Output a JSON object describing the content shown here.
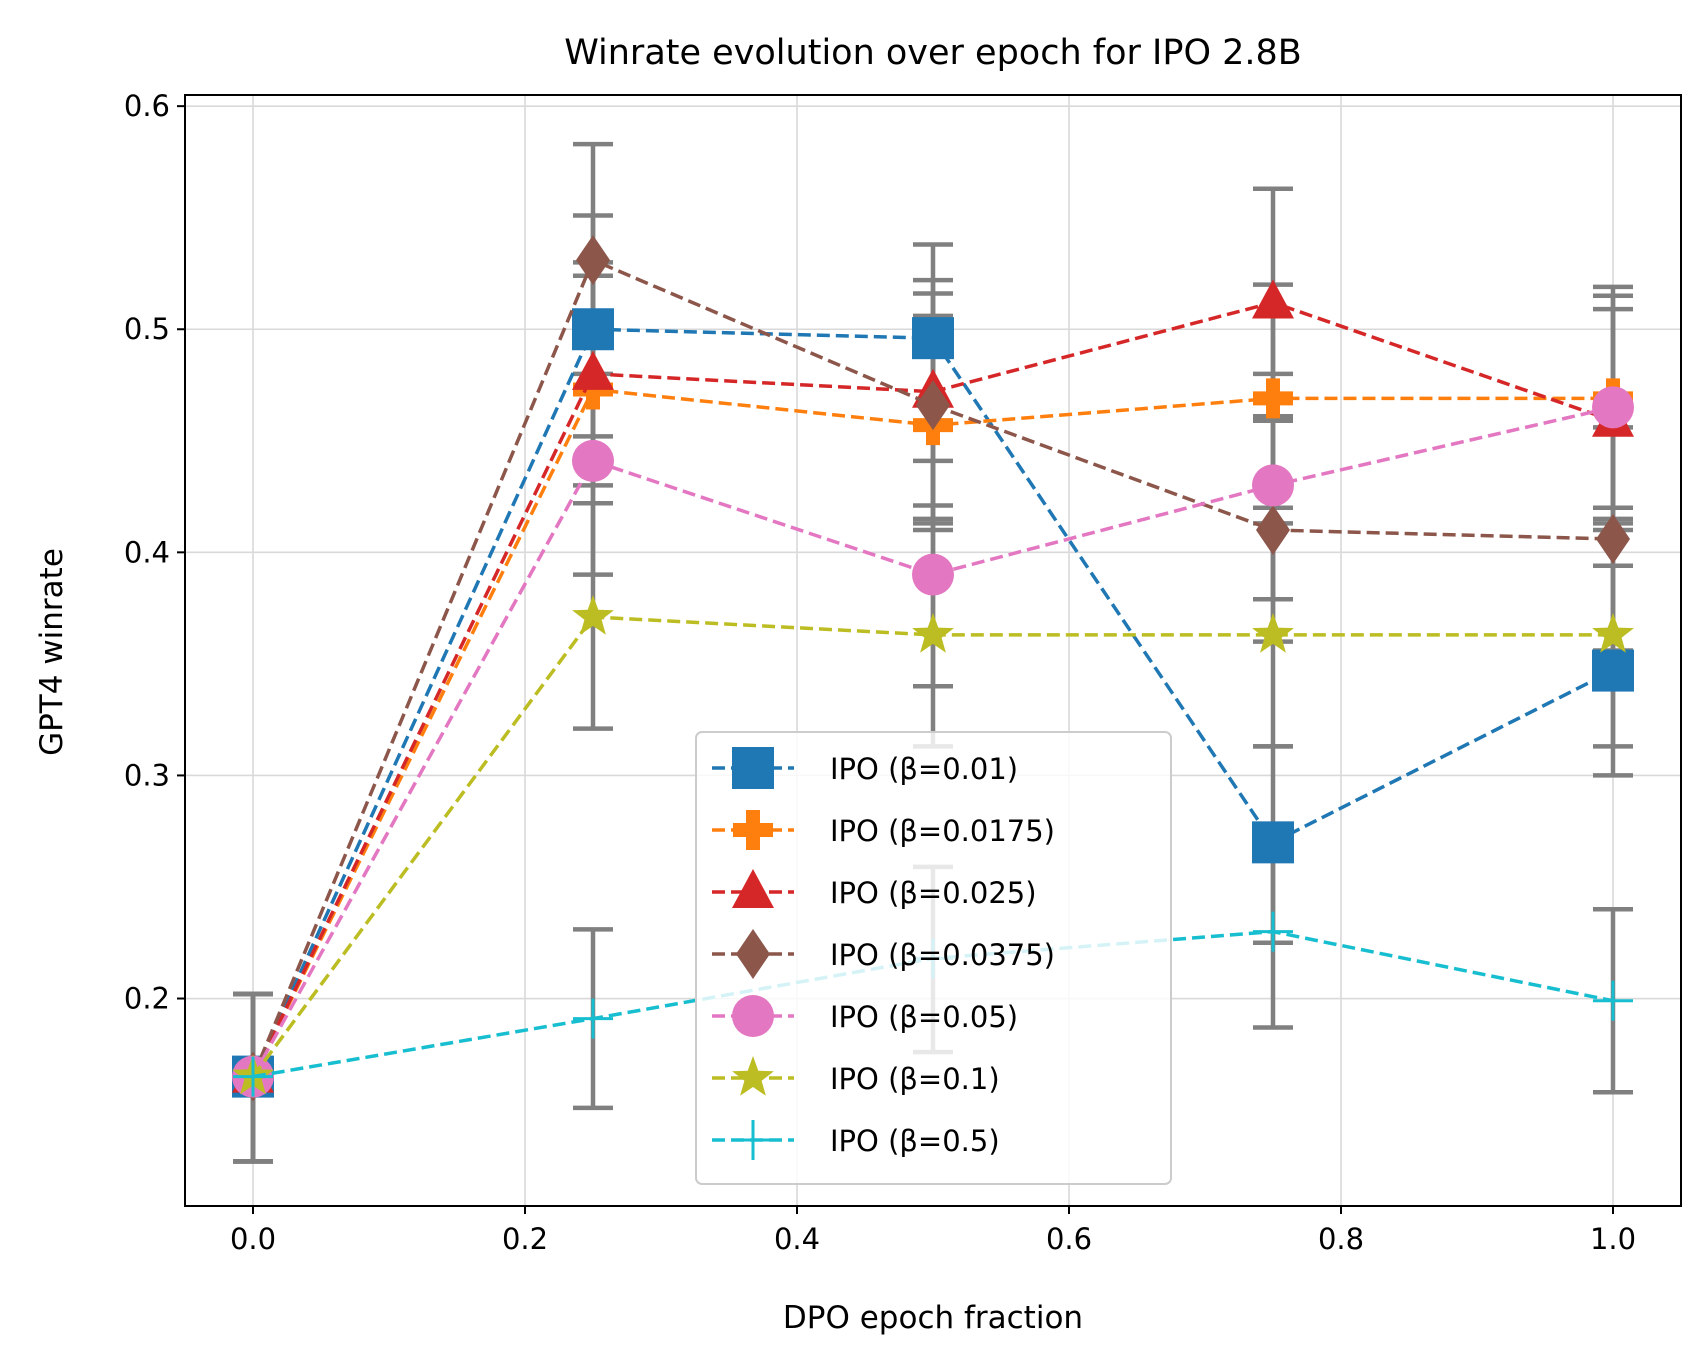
{
  "chart_data": {
    "type": "line",
    "title": "Winrate evolution over epoch for IPO 2.8B",
    "xlabel": "DPO epoch fraction",
    "ylabel": "GPT4 winrate",
    "xlim": [
      -0.05,
      1.05
    ],
    "ylim": [
      0.107,
      0.605
    ],
    "xticks": [
      0.0,
      0.2,
      0.4,
      0.6,
      0.8,
      1.0
    ],
    "xtick_labels": [
      "0.0",
      "0.2",
      "0.4",
      "0.6",
      "0.8",
      "1.0"
    ],
    "yticks": [
      0.2,
      0.3,
      0.4,
      0.5,
      0.6
    ],
    "ytick_labels": [
      "0.2",
      "0.3",
      "0.4",
      "0.5",
      "0.6"
    ],
    "grid": true,
    "legend_position": "bottom-center",
    "errorbar_color": "#808080",
    "x": [
      0.0,
      0.25,
      0.5,
      0.75,
      1.0
    ],
    "series": [
      {
        "name": "IPO (β=0.01)",
        "color": "#1f77b4",
        "marker": "square",
        "values": [
          0.165,
          0.5,
          0.496,
          0.27,
          0.347
        ],
        "err_low": [
          0.127,
          0.452,
          0.455,
          0.225,
          0.3
        ],
        "err_high": [
          0.202,
          0.551,
          0.538,
          0.313,
          0.394
        ]
      },
      {
        "name": "IPO (β=0.0175)",
        "color": "#ff7f0e",
        "marker": "plus-filled",
        "values": [
          0.165,
          0.473,
          0.457,
          0.469,
          0.469
        ],
        "err_low": [
          0.127,
          0.422,
          0.41,
          0.42,
          0.42
        ],
        "err_high": [
          0.202,
          0.524,
          0.506,
          0.52,
          0.519
        ]
      },
      {
        "name": "IPO (β=0.025)",
        "color": "#d62728",
        "marker": "triangle",
        "values": [
          0.165,
          0.48,
          0.472,
          0.512,
          0.459
        ],
        "err_low": [
          0.127,
          0.43,
          0.421,
          0.461,
          0.41
        ],
        "err_high": [
          0.202,
          0.53,
          0.522,
          0.563,
          0.509
        ]
      },
      {
        "name": "IPO (β=0.0375)",
        "color": "#8c564b",
        "marker": "diamond",
        "values": [
          0.165,
          0.531,
          0.466,
          0.41,
          0.406
        ],
        "err_low": [
          0.127,
          0.48,
          0.415,
          0.36,
          0.356
        ],
        "err_high": [
          0.202,
          0.583,
          0.516,
          0.459,
          0.456
        ]
      },
      {
        "name": "IPO (β=0.05)",
        "color": "#e377c2",
        "marker": "circle",
        "values": [
          0.165,
          0.441,
          0.39,
          0.43,
          0.465
        ],
        "err_low": [
          0.127,
          0.39,
          0.34,
          0.379,
          0.415
        ],
        "err_high": [
          0.202,
          0.492,
          0.441,
          0.48,
          0.515
        ]
      },
      {
        "name": "IPO (β=0.1)",
        "color": "#bcbd22",
        "marker": "star",
        "values": [
          0.165,
          0.371,
          0.363,
          0.363,
          0.363
        ],
        "err_low": [
          0.127,
          0.321,
          0.313,
          0.313,
          0.313
        ],
        "err_high": [
          0.202,
          0.422,
          0.413,
          0.413,
          0.413
        ]
      },
      {
        "name": "IPO (β=0.5)",
        "color": "#17becf",
        "marker": "plus",
        "values": [
          0.165,
          0.191,
          0.218,
          0.23,
          0.199
        ],
        "err_low": [
          0.127,
          0.151,
          0.176,
          0.187,
          0.158
        ],
        "err_high": [
          0.202,
          0.231,
          0.259,
          0.272,
          0.24
        ]
      }
    ]
  }
}
